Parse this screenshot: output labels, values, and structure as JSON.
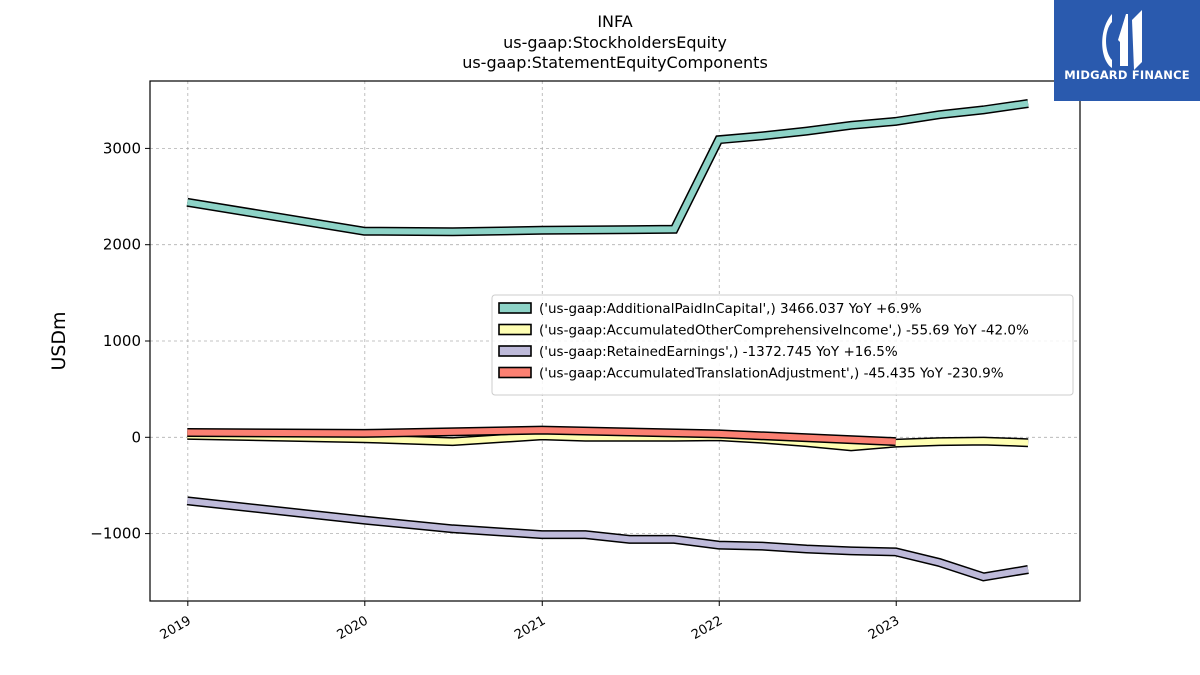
{
  "brand": {
    "name": "MIDGARD FINANCE",
    "icon": "m-monogram-icon",
    "bg_color": "#2a5aae"
  },
  "chart_data": {
    "type": "line",
    "title_lines": [
      "INFA",
      "us-gaap:StockholdersEquity",
      "us-gaap:StatementEquityComponents"
    ],
    "xlabel": "",
    "ylabel": "USDm",
    "x_ticks": [
      "2019",
      "2020",
      "2021",
      "2022",
      "2023"
    ],
    "xlim": [
      "2018-10-15",
      "2024-01-15"
    ],
    "y_ticks": [
      -1000,
      0,
      1000,
      2000,
      3000
    ],
    "ylim": [
      -1700,
      3700
    ],
    "grid": true,
    "legend_position": "center-right",
    "series": [
      {
        "name": "('us-gaap:AdditionalPaidInCapital',) 3466.037 YoY +6.9%",
        "color": "#8dd3c7",
        "points": [
          [
            "2018-12-31",
            2440
          ],
          [
            "2019-12-31",
            2140
          ],
          [
            "2020-06-30",
            2135
          ],
          [
            "2020-12-31",
            2150
          ],
          [
            "2021-09-30",
            2160
          ],
          [
            "2021-12-31",
            3090
          ],
          [
            "2022-03-31",
            3130
          ],
          [
            "2022-06-30",
            3180
          ],
          [
            "2022-09-30",
            3240
          ],
          [
            "2022-12-31",
            3280
          ],
          [
            "2023-03-31",
            3350
          ],
          [
            "2023-06-30",
            3400
          ],
          [
            "2023-09-30",
            3466
          ]
        ]
      },
      {
        "name": "('us-gaap:AccumulatedOtherComprehensiveIncome',) -55.69 YoY -42.0%",
        "color": "#ffffb3",
        "points": [
          [
            "2018-12-31",
            20
          ],
          [
            "2019-12-31",
            -15
          ],
          [
            "2020-06-30",
            -45
          ],
          [
            "2020-12-31",
            15
          ],
          [
            "2021-03-31",
            0
          ],
          [
            "2021-09-30",
            0
          ],
          [
            "2021-12-31",
            5
          ],
          [
            "2022-03-31",
            -20
          ],
          [
            "2022-06-30",
            -55
          ],
          [
            "2022-09-30",
            -100
          ],
          [
            "2022-12-31",
            -60
          ],
          [
            "2023-03-31",
            -45
          ],
          [
            "2023-06-30",
            -40
          ],
          [
            "2023-09-30",
            -56
          ]
        ]
      },
      {
        "name": "('us-gaap:RetainedEarnings',) -1372.745 YoY +16.5%",
        "color": "#bebada",
        "points": [
          [
            "2018-12-31",
            -660
          ],
          [
            "2019-12-31",
            -860
          ],
          [
            "2020-06-30",
            -950
          ],
          [
            "2020-12-31",
            -1010
          ],
          [
            "2021-03-31",
            -1010
          ],
          [
            "2021-06-30",
            -1060
          ],
          [
            "2021-09-30",
            -1060
          ],
          [
            "2021-12-31",
            -1120
          ],
          [
            "2022-03-31",
            -1130
          ],
          [
            "2022-06-30",
            -1160
          ],
          [
            "2022-09-30",
            -1180
          ],
          [
            "2022-12-31",
            -1190
          ],
          [
            "2023-03-31",
            -1300
          ],
          [
            "2023-06-30",
            -1450
          ],
          [
            "2023-09-30",
            -1373
          ]
        ]
      },
      {
        "name": "('us-gaap:AccumulatedTranslationAdjustment',) -45.435 YoY -230.9%",
        "color": "#fb8072",
        "points": [
          [
            "2018-12-31",
            50
          ],
          [
            "2019-12-31",
            40
          ],
          [
            "2020-12-31",
            75
          ],
          [
            "2021-12-31",
            35
          ],
          [
            "2022-12-31",
            -45
          ]
        ]
      }
    ]
  }
}
